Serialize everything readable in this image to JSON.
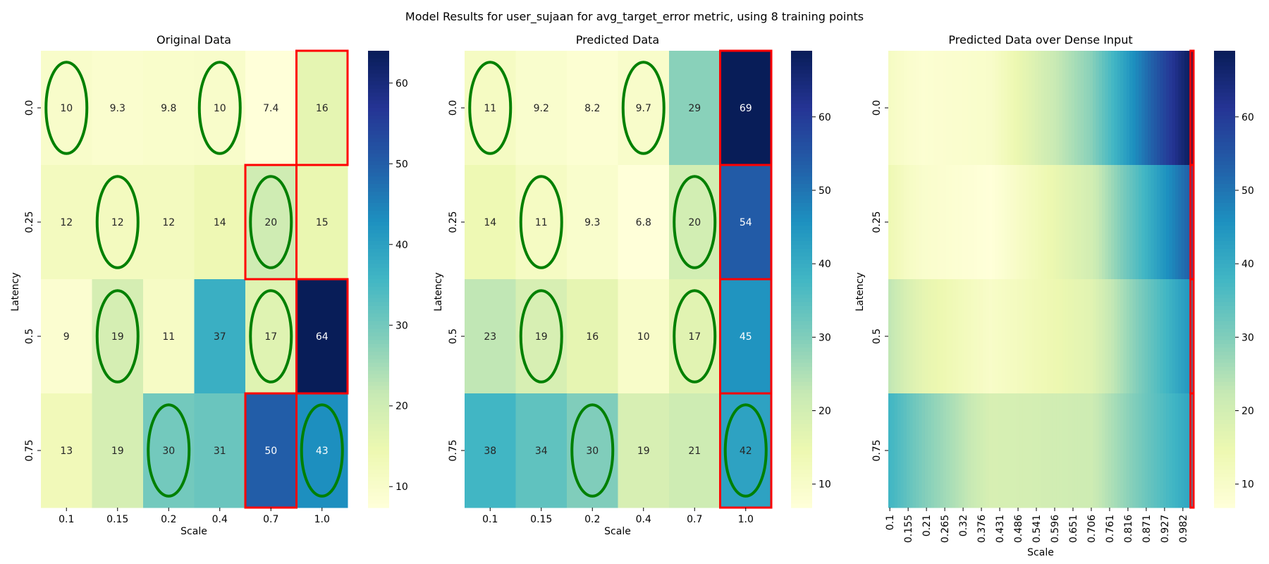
{
  "title": "Model Results for user_sujaan for avg_target_error metric, using 8 training points",
  "colors": {
    "colormap": "YlGnBu",
    "training_marker": "#008000",
    "highlight_box": "#ff0000"
  },
  "chart_data": [
    {
      "type": "heatmap",
      "title": "Original Data",
      "xlabel": "Scale",
      "ylabel": "Latency",
      "x_ticks": [
        "0.1",
        "0.15",
        "0.2",
        "0.4",
        "0.7",
        "1.0"
      ],
      "y_ticks": [
        "0.0",
        "0.25",
        "0.5",
        "0.75"
      ],
      "values": [
        [
          10,
          9.3,
          9.8,
          10,
          7.4,
          16
        ],
        [
          12,
          12,
          12,
          14,
          20,
          15
        ],
        [
          9,
          19,
          11,
          37,
          17,
          64
        ],
        [
          13,
          19,
          30,
          31,
          50,
          43
        ]
      ],
      "annotations": [
        [
          "10",
          "9.3",
          "9.8",
          "10",
          "7.4",
          "16"
        ],
        [
          "12",
          "12",
          "12",
          "14",
          "20",
          "15"
        ],
        [
          "9",
          "19",
          "11",
          "37",
          "17",
          "64"
        ],
        [
          "13",
          "19",
          "30",
          "31",
          "50",
          "43"
        ]
      ],
      "value_range": [
        7.4,
        64
      ],
      "colorbar_ticks": [
        10,
        20,
        30,
        40,
        50,
        60
      ],
      "training_points": [
        [
          0,
          0
        ],
        [
          0,
          3
        ],
        [
          1,
          1
        ],
        [
          1,
          4
        ],
        [
          2,
          1
        ],
        [
          2,
          4
        ],
        [
          3,
          2
        ],
        [
          3,
          5
        ]
      ],
      "highlight_boxes": [
        [
          0,
          5
        ],
        [
          1,
          4
        ],
        [
          2,
          5
        ],
        [
          3,
          4
        ]
      ]
    },
    {
      "type": "heatmap",
      "title": "Predicted Data",
      "xlabel": "Scale",
      "ylabel": "Latency",
      "x_ticks": [
        "0.1",
        "0.15",
        "0.2",
        "0.4",
        "0.7",
        "1.0"
      ],
      "y_ticks": [
        "0.0",
        "0.25",
        "0.5",
        "0.75"
      ],
      "values": [
        [
          11,
          9.2,
          8.2,
          9.7,
          29,
          69
        ],
        [
          14,
          11,
          9.3,
          6.8,
          20,
          54
        ],
        [
          23,
          19,
          16,
          10,
          17,
          45
        ],
        [
          38,
          34,
          30,
          19,
          21,
          42
        ]
      ],
      "annotations": [
        [
          "11",
          "9.2",
          "8.2",
          "9.7",
          "29",
          "69"
        ],
        [
          "14",
          "11",
          "9.3",
          "6.8",
          "20",
          "54"
        ],
        [
          "23",
          "19",
          "16",
          "10",
          "17",
          "45"
        ],
        [
          "38",
          "34",
          "30",
          "19",
          "21",
          "42"
        ]
      ],
      "value_range": [
        6.8,
        69
      ],
      "colorbar_ticks": [
        10,
        20,
        30,
        40,
        50,
        60
      ],
      "training_points": [
        [
          0,
          0
        ],
        [
          0,
          3
        ],
        [
          1,
          1
        ],
        [
          1,
          4
        ],
        [
          2,
          1
        ],
        [
          2,
          4
        ],
        [
          3,
          2
        ],
        [
          3,
          5
        ]
      ],
      "highlight_boxes": [
        [
          0,
          5
        ],
        [
          1,
          5
        ],
        [
          2,
          5
        ],
        [
          3,
          5
        ]
      ]
    },
    {
      "type": "heatmap",
      "title": "Predicted Data over Dense Input",
      "xlabel": "Scale",
      "ylabel": "Latency",
      "x_ticks": [
        "0.1",
        "0.155",
        "0.21",
        "0.265",
        "0.32",
        "0.376",
        "0.431",
        "0.486",
        "0.541",
        "0.596",
        "0.651",
        "0.706",
        "0.761",
        "0.816",
        "0.871",
        "0.927",
        "0.982"
      ],
      "y_ticks": [
        "0.0",
        "0.25",
        "0.5",
        "0.75"
      ],
      "x_range": [
        0.1,
        1.0
      ],
      "dense_anchor_scales": [
        0.1,
        0.15,
        0.2,
        0.4,
        0.7,
        1.0
      ],
      "dense_anchor_values": [
        [
          11,
          9.2,
          8.2,
          9.7,
          29,
          69
        ],
        [
          14,
          11,
          9.3,
          6.8,
          20,
          54
        ],
        [
          23,
          19,
          16,
          10,
          17,
          45
        ],
        [
          38,
          34,
          30,
          19,
          21,
          42
        ]
      ],
      "value_range": [
        6.8,
        69
      ],
      "colorbar_ticks": [
        10,
        20,
        30,
        40,
        50,
        60
      ],
      "highlight_boxes": [
        [
          0,
          1.0
        ],
        [
          1,
          1.0
        ],
        [
          2,
          1.0
        ],
        [
          3,
          1.0
        ]
      ]
    }
  ]
}
